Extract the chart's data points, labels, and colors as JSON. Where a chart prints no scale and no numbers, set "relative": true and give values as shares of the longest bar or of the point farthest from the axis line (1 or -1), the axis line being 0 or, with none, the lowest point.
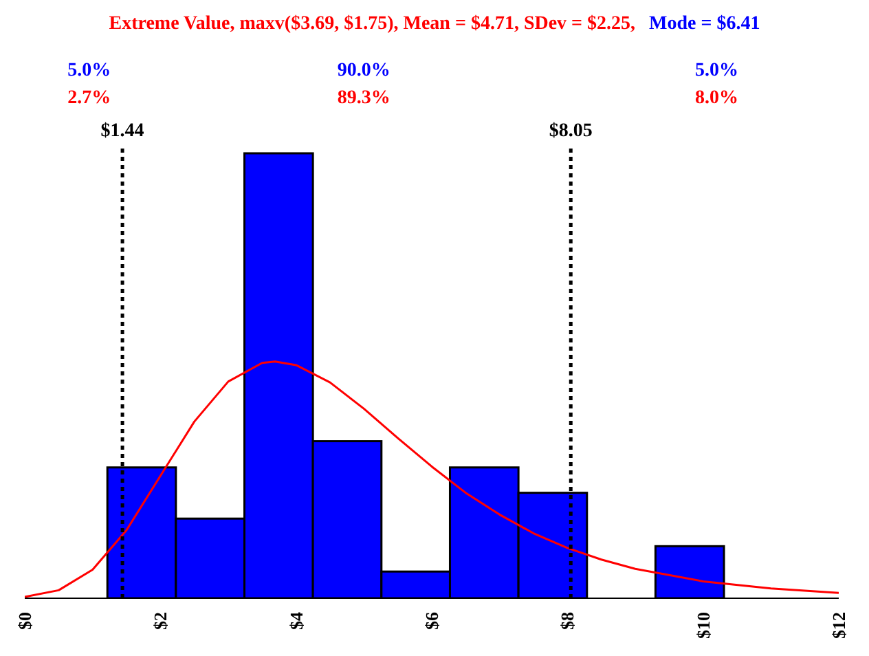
{
  "chart_data": {
    "type": "histogram",
    "title": "Extreme Value, maxv($3.69, $1.75), Mean = $4.71, SDev = $2.25,",
    "subtitle": "Mode = $6.41",
    "relative": true,
    "bins": [
      1.22,
      2.23,
      3.24,
      4.25,
      5.26,
      6.27,
      7.28,
      8.29,
      9.3,
      10.31
    ],
    "series": [
      {
        "color": "#0000ff",
        "values": [
          0.294,
          0.179,
          1,
          0.353,
          0.06,
          0.294,
          0.237,
          0,
          0.117
        ]
      },
      {
        "type": "line",
        "color": "#ff0000",
        "x": [
          0,
          0.5,
          1,
          1.5,
          2,
          2.5,
          3,
          3.5,
          3.69,
          4,
          4.5,
          5,
          5.5,
          6,
          6.5,
          7,
          7.5,
          8,
          8.5,
          9,
          10,
          11,
          12
        ],
        "values": [
          0.003,
          0.018,
          0.064,
          0.153,
          0.275,
          0.397,
          0.487,
          0.529,
          0.532,
          0.524,
          0.485,
          0.426,
          0.36,
          0.296,
          0.237,
          0.188,
          0.146,
          0.113,
          0.087,
          0.066,
          0.038,
          0.022,
          0.012
        ]
      }
    ],
    "xlim": [
      0,
      12
    ],
    "xticks": [
      {
        "value": 0,
        "label": "$0"
      },
      {
        "value": 2,
        "label": "$2"
      },
      {
        "value": 4,
        "label": "$4"
      },
      {
        "value": 6,
        "label": "$6"
      },
      {
        "value": 8,
        "label": "$8"
      },
      {
        "value": 10,
        "label": "$10"
      },
      {
        "value": 12,
        "label": "$12"
      }
    ],
    "ref_lines": [
      {
        "axis": "x",
        "value": 1.44,
        "label": "$1.44",
        "color": "#000000",
        "line_style": "dotted"
      },
      {
        "axis": "x",
        "value": 8.05,
        "label": "$8.05",
        "color": "#000000",
        "line_style": "dotted"
      }
    ],
    "annotations": [
      "5.0%",
      "2.7%",
      "90.0%",
      "89.3%",
      "5.0%",
      "8.0%"
    ],
    "marker": "none",
    "grid": false,
    "legend": false
  }
}
